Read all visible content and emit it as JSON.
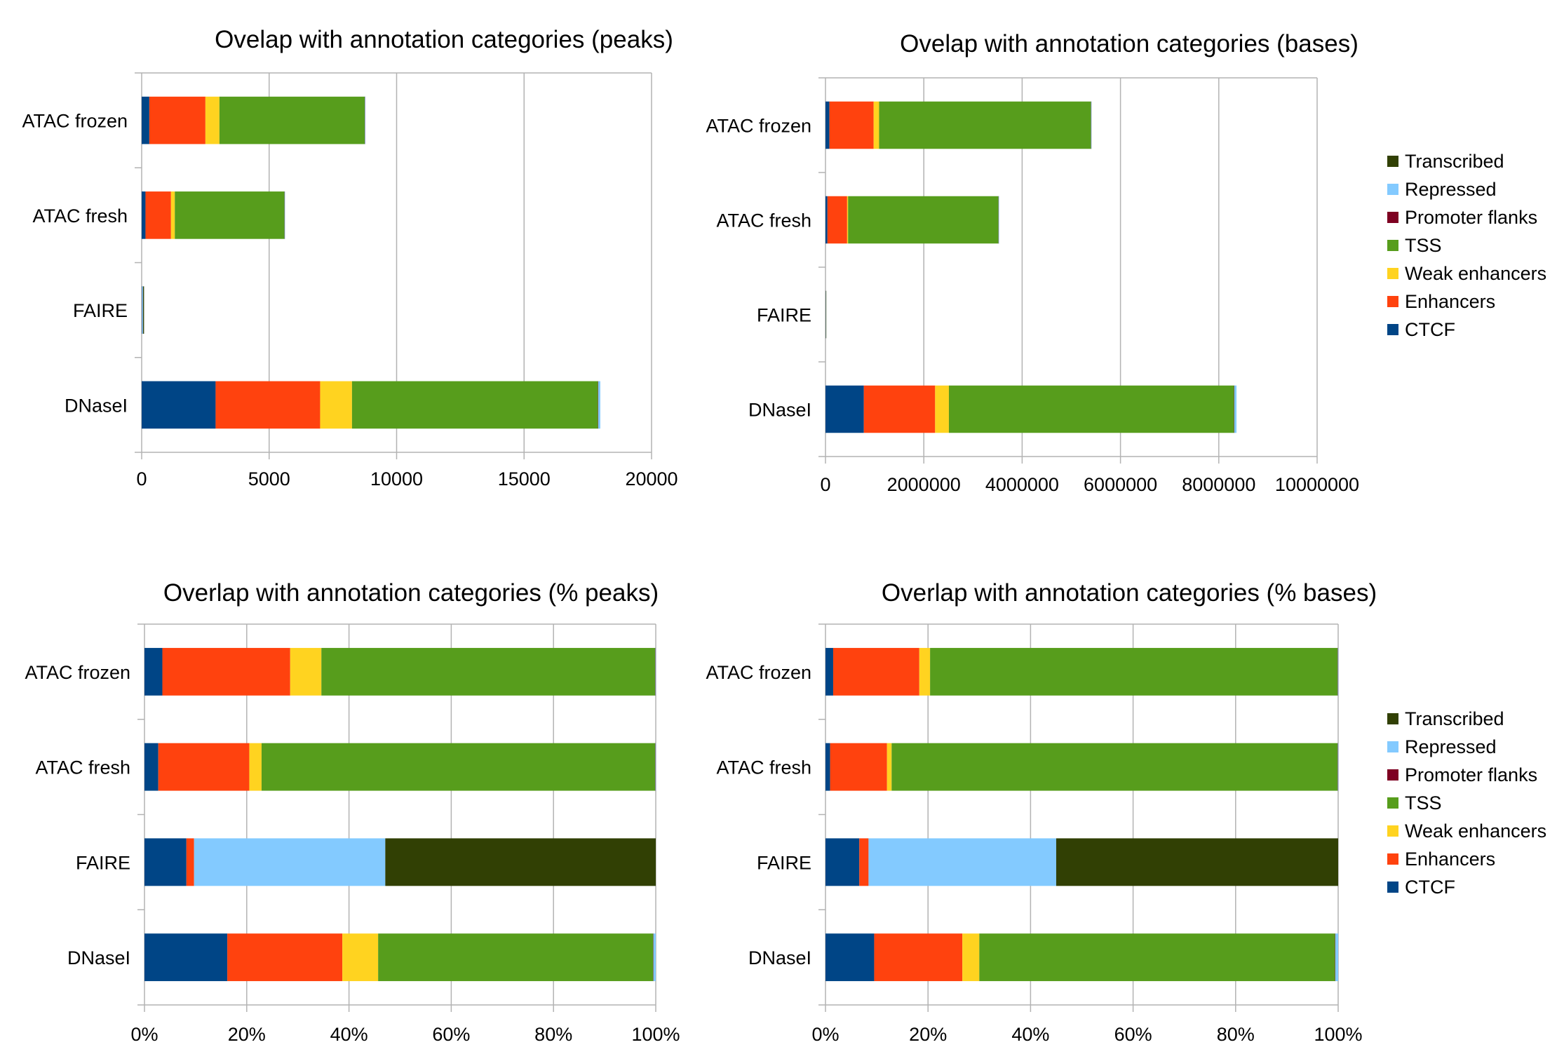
{
  "colors": {
    "CTCF": "#004586",
    "Enhancers": "#ff420e",
    "Weak enhancers": "#ffd320",
    "TSS": "#579d1c",
    "Promoter flanks": "#7e0021",
    "Repressed": "#83caff",
    "Transcribed": "#314004",
    "grid": "#b3b3b3"
  },
  "legend_order": [
    "Transcribed",
    "Repressed",
    "Promoter flanks",
    "TSS",
    "Weak enhancers",
    "Enhancers",
    "CTCF"
  ],
  "chart_data": [
    {
      "type": "bar",
      "orientation": "horizontal",
      "stacked": true,
      "title": "Ovelap with annotation categories (peaks)",
      "categories": [
        "ATAC frozen",
        "ATAC fresh",
        "FAIRE",
        "DNaseI"
      ],
      "xlim": [
        0,
        20000
      ],
      "xticks": [
        0,
        5000,
        10000,
        15000,
        20000
      ],
      "tick_labels": [
        "0",
        "5000",
        "10000",
        "15000",
        "20000"
      ],
      "grid": true,
      "legend": "none",
      "series": [
        {
          "name": "CTCF",
          "values": [
            300,
            150,
            10,
            2900
          ]
        },
        {
          "name": "Enhancers",
          "values": [
            2200,
            1000,
            3,
            4100
          ]
        },
        {
          "name": "Weak enhancers",
          "values": [
            550,
            150,
            0,
            1250
          ]
        },
        {
          "name": "TSS",
          "values": [
            5700,
            4300,
            0,
            9650
          ]
        },
        {
          "name": "Promoter flanks",
          "values": [
            5,
            5,
            0,
            10
          ]
        },
        {
          "name": "Repressed",
          "values": [
            5,
            5,
            40,
            80
          ]
        },
        {
          "name": "Transcribed",
          "values": [
            0,
            0,
            40,
            0
          ]
        }
      ]
    },
    {
      "type": "bar",
      "orientation": "horizontal",
      "stacked": true,
      "title": "Ovelap with annotation categories (bases)",
      "categories": [
        "ATAC frozen",
        "ATAC fresh",
        "FAIRE",
        "DNaseI"
      ],
      "xlim": [
        0,
        10000000
      ],
      "xticks": [
        0,
        2000000,
        4000000,
        6000000,
        8000000,
        10000000
      ],
      "tick_labels": [
        "0",
        "2000000",
        "4000000",
        "6000000",
        "8000000",
        "10000000"
      ],
      "grid": true,
      "legend": "right",
      "series": [
        {
          "name": "CTCF",
          "values": [
            80000,
            40000,
            1000,
            780000
          ]
        },
        {
          "name": "Enhancers",
          "values": [
            900000,
            400000,
            500,
            1450000
          ]
        },
        {
          "name": "Weak enhancers",
          "values": [
            110000,
            20000,
            0,
            280000
          ]
        },
        {
          "name": "TSS",
          "values": [
            4310000,
            3060000,
            0,
            5800000
          ]
        },
        {
          "name": "Promoter flanks",
          "values": [
            2000,
            1000,
            0,
            5000
          ]
        },
        {
          "name": "Repressed",
          "values": [
            3000,
            1000,
            6000,
            45000
          ]
        },
        {
          "name": "Transcribed",
          "values": [
            0,
            0,
            9000,
            0
          ]
        }
      ]
    },
    {
      "type": "bar",
      "orientation": "horizontal",
      "stacked": true,
      "title": "Overlap with annotation categories (% peaks)",
      "categories": [
        "ATAC frozen",
        "ATAC fresh",
        "FAIRE",
        "DNaseI"
      ],
      "xlim": [
        0,
        100
      ],
      "xticks": [
        0,
        20,
        40,
        60,
        80,
        100
      ],
      "tick_labels": [
        "0%",
        "20%",
        "40%",
        "60%",
        "80%",
        "100%"
      ],
      "grid": true,
      "legend": "none",
      "series": [
        {
          "name": "CTCF",
          "values": [
            3.5,
            2.7,
            8.2,
            16.2
          ]
        },
        {
          "name": "Enhancers",
          "values": [
            25.0,
            17.8,
            1.5,
            22.5
          ]
        },
        {
          "name": "Weak enhancers",
          "values": [
            6.1,
            2.4,
            0,
            7.0
          ]
        },
        {
          "name": "TSS",
          "values": [
            65.3,
            77.0,
            0,
            53.8
          ]
        },
        {
          "name": "Promoter flanks",
          "values": [
            0.05,
            0.05,
            0,
            0.05
          ]
        },
        {
          "name": "Repressed",
          "values": [
            0.05,
            0.05,
            37.4,
            0.45
          ]
        },
        {
          "name": "Transcribed",
          "values": [
            0,
            0,
            52.9,
            0
          ]
        }
      ]
    },
    {
      "type": "bar",
      "orientation": "horizontal",
      "stacked": true,
      "title": "Overlap with annotation categories (% bases)",
      "categories": [
        "ATAC frozen",
        "ATAC fresh",
        "FAIRE",
        "DNaseI"
      ],
      "xlim": [
        0,
        100
      ],
      "xticks": [
        0,
        20,
        40,
        60,
        80,
        100
      ],
      "tick_labels": [
        "0%",
        "20%",
        "40%",
        "60%",
        "80%",
        "100%"
      ],
      "grid": true,
      "legend": "right",
      "series": [
        {
          "name": "CTCF",
          "values": [
            1.5,
            0.9,
            6.6,
            9.5
          ]
        },
        {
          "name": "Enhancers",
          "values": [
            16.8,
            11.1,
            1.8,
            17.2
          ]
        },
        {
          "name": "Weak enhancers",
          "values": [
            2.1,
            0.9,
            0,
            3.3
          ]
        },
        {
          "name": "TSS",
          "values": [
            79.5,
            87.0,
            0,
            69.4
          ]
        },
        {
          "name": "Promoter flanks",
          "values": [
            0.05,
            0.05,
            0,
            0.05
          ]
        },
        {
          "name": "Repressed",
          "values": [
            0.05,
            0.05,
            36.6,
            0.55
          ]
        },
        {
          "name": "Transcribed",
          "values": [
            0,
            0,
            55.0,
            0
          ]
        }
      ]
    }
  ]
}
